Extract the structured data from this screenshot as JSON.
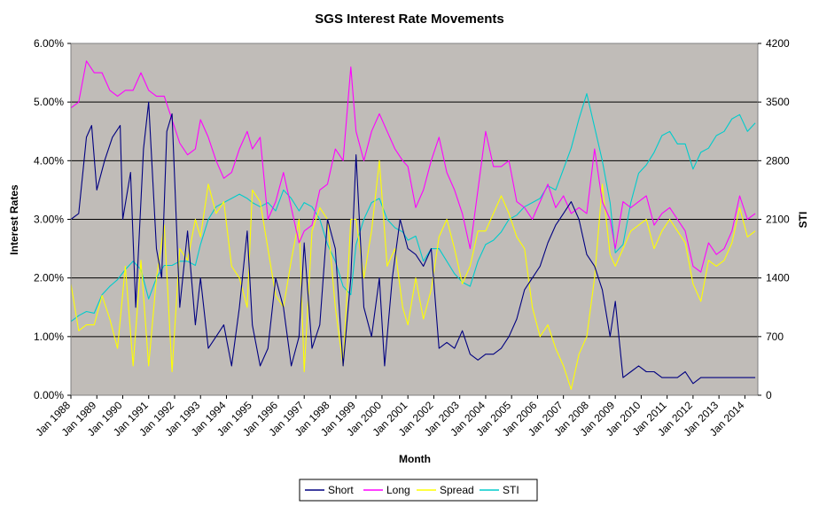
{
  "chart_data": {
    "type": "line",
    "title": "SGS Interest Rate Movements",
    "xlabel": "Month",
    "ylabel": "Interest Rates",
    "y2label": "STI",
    "ylim": [
      0,
      0.06
    ],
    "y2lim": [
      0,
      4200
    ],
    "y_ticks": [
      "0.00%",
      "1.00%",
      "2.00%",
      "3.00%",
      "4.00%",
      "5.00%",
      "6.00%"
    ],
    "y2_ticks": [
      "0",
      "700",
      "1400",
      "2100",
      "2800",
      "3500",
      "4200"
    ],
    "x_ticks": [
      "Jan 1988",
      "Jan 1989",
      "Jan 1990",
      "Jan 1991",
      "Jan 1992",
      "Jan 1993",
      "Jan 1994",
      "Jan 1995",
      "Jan 1996",
      "Jan 1997",
      "Jan 1998",
      "Jan 1999",
      "Jan 2000",
      "Jan 2001",
      "Jan 2002",
      "Jan 2003",
      "Jan 2004",
      "Jan 2005",
      "Jan 2006",
      "Jan 2007",
      "Jan 2008",
      "Jan 2009",
      "Jan 2010",
      "Jan 2011",
      "Jan 2012",
      "Jan 2013",
      "Jan 2014"
    ],
    "xlim": [
      1988.0,
      2014.5
    ],
    "grid": true,
    "legend": "bottom",
    "background": "#c0bcb8",
    "series": [
      {
        "name": "Short",
        "color": "#000080",
        "axis": "left",
        "x": [
          1988.0,
          1988.3,
          1988.6,
          1988.8,
          1989.0,
          1989.3,
          1989.6,
          1989.9,
          1990.0,
          1990.3,
          1990.5,
          1990.8,
          1991.0,
          1991.3,
          1991.5,
          1991.7,
          1991.9,
          1992.2,
          1992.5,
          1992.8,
          1993.0,
          1993.3,
          1993.6,
          1993.9,
          1994.2,
          1994.5,
          1994.8,
          1995.0,
          1995.3,
          1995.6,
          1995.9,
          1996.2,
          1996.5,
          1996.8,
          1997.0,
          1997.3,
          1997.6,
          1997.9,
          1998.2,
          1998.5,
          1998.8,
          1999.0,
          1999.3,
          1999.6,
          1999.9,
          2000.1,
          2000.4,
          2000.7,
          2001.0,
          2001.3,
          2001.6,
          2001.9,
          2002.2,
          2002.5,
          2002.8,
          2003.1,
          2003.4,
          2003.7,
          2004.0,
          2004.3,
          2004.6,
          2004.9,
          2005.2,
          2005.5,
          2005.8,
          2006.1,
          2006.4,
          2006.7,
          2007.0,
          2007.3,
          2007.6,
          2007.9,
          2008.2,
          2008.5,
          2008.8,
          2009.0,
          2009.3,
          2009.6,
          2009.9,
          2010.2,
          2010.5,
          2010.8,
          2011.1,
          2011.4,
          2011.7,
          2012.0,
          2012.3,
          2012.6,
          2012.9,
          2013.2,
          2013.5,
          2013.8,
          2014.1,
          2014.4
        ],
        "y": [
          0.03,
          0.031,
          0.044,
          0.046,
          0.035,
          0.04,
          0.044,
          0.046,
          0.03,
          0.038,
          0.015,
          0.042,
          0.05,
          0.025,
          0.02,
          0.045,
          0.048,
          0.015,
          0.028,
          0.012,
          0.02,
          0.008,
          0.01,
          0.012,
          0.005,
          0.015,
          0.028,
          0.012,
          0.005,
          0.008,
          0.02,
          0.015,
          0.005,
          0.01,
          0.026,
          0.008,
          0.012,
          0.03,
          0.025,
          0.005,
          0.02,
          0.041,
          0.015,
          0.01,
          0.02,
          0.005,
          0.02,
          0.03,
          0.025,
          0.024,
          0.022,
          0.025,
          0.008,
          0.009,
          0.008,
          0.011,
          0.007,
          0.006,
          0.007,
          0.007,
          0.008,
          0.01,
          0.013,
          0.018,
          0.02,
          0.022,
          0.026,
          0.029,
          0.031,
          0.033,
          0.03,
          0.024,
          0.022,
          0.018,
          0.01,
          0.016,
          0.003,
          0.004,
          0.005,
          0.004,
          0.004,
          0.003,
          0.003,
          0.003,
          0.004,
          0.002,
          0.003,
          0.003,
          0.003,
          0.003,
          0.003,
          0.003,
          0.003,
          0.003
        ]
      },
      {
        "name": "Long",
        "color": "#ff00ff",
        "axis": "left",
        "x": [
          1988.0,
          1988.3,
          1988.6,
          1988.9,
          1989.2,
          1989.5,
          1989.8,
          1990.1,
          1990.4,
          1990.7,
          1991.0,
          1991.3,
          1991.6,
          1991.9,
          1992.2,
          1992.5,
          1992.8,
          1993.0,
          1993.3,
          1993.6,
          1993.9,
          1994.2,
          1994.5,
          1994.8,
          1995.0,
          1995.3,
          1995.6,
          1995.9,
          1996.2,
          1996.5,
          1996.8,
          1997.0,
          1997.3,
          1997.6,
          1997.9,
          1998.2,
          1998.5,
          1998.8,
          1999.0,
          1999.3,
          1999.6,
          1999.9,
          2000.2,
          2000.5,
          2000.8,
          2001.0,
          2001.3,
          2001.6,
          2001.9,
          2002.2,
          2002.5,
          2002.8,
          2003.1,
          2003.4,
          2003.7,
          2004.0,
          2004.3,
          2004.6,
          2004.9,
          2005.2,
          2005.5,
          2005.8,
          2006.1,
          2006.4,
          2006.7,
          2007.0,
          2007.3,
          2007.6,
          2007.9,
          2008.2,
          2008.5,
          2008.8,
          2009.0,
          2009.3,
          2009.6,
          2009.9,
          2010.2,
          2010.5,
          2010.8,
          2011.1,
          2011.4,
          2011.7,
          2012.0,
          2012.3,
          2012.6,
          2012.9,
          2013.2,
          2013.5,
          2013.8,
          2014.1,
          2014.4
        ],
        "y": [
          0.049,
          0.05,
          0.057,
          0.055,
          0.055,
          0.052,
          0.051,
          0.052,
          0.052,
          0.055,
          0.052,
          0.051,
          0.051,
          0.047,
          0.043,
          0.041,
          0.042,
          0.047,
          0.044,
          0.04,
          0.037,
          0.038,
          0.042,
          0.045,
          0.042,
          0.044,
          0.03,
          0.033,
          0.038,
          0.032,
          0.026,
          0.028,
          0.029,
          0.035,
          0.036,
          0.042,
          0.04,
          0.056,
          0.045,
          0.04,
          0.045,
          0.048,
          0.045,
          0.042,
          0.04,
          0.039,
          0.032,
          0.035,
          0.04,
          0.044,
          0.038,
          0.035,
          0.031,
          0.025,
          0.035,
          0.045,
          0.039,
          0.039,
          0.04,
          0.033,
          0.032,
          0.03,
          0.033,
          0.036,
          0.032,
          0.034,
          0.031,
          0.032,
          0.031,
          0.042,
          0.033,
          0.03,
          0.025,
          0.033,
          0.032,
          0.033,
          0.034,
          0.029,
          0.031,
          0.032,
          0.03,
          0.028,
          0.022,
          0.021,
          0.026,
          0.024,
          0.025,
          0.028,
          0.034,
          0.03,
          0.031
        ]
      },
      {
        "name": "Spread",
        "color": "#ffff00",
        "axis": "left",
        "x": [
          1988.0,
          1988.3,
          1988.6,
          1988.9,
          1989.2,
          1989.5,
          1989.8,
          1990.1,
          1990.4,
          1990.7,
          1991.0,
          1991.3,
          1991.6,
          1991.9,
          1992.2,
          1992.5,
          1992.8,
          1993.0,
          1993.3,
          1993.6,
          1993.9,
          1994.2,
          1994.5,
          1994.8,
          1995.0,
          1995.3,
          1995.6,
          1995.9,
          1996.2,
          1996.5,
          1996.8,
          1997.0,
          1997.3,
          1997.6,
          1997.9,
          1998.2,
          1998.5,
          1998.8,
          1999.0,
          1999.3,
          1999.6,
          1999.9,
          2000.2,
          2000.5,
          2000.8,
          2001.0,
          2001.3,
          2001.6,
          2001.9,
          2002.2,
          2002.5,
          2002.8,
          2003.1,
          2003.4,
          2003.7,
          2004.0,
          2004.3,
          2004.6,
          2004.9,
          2005.2,
          2005.5,
          2005.8,
          2006.1,
          2006.4,
          2006.7,
          2007.0,
          2007.3,
          2007.6,
          2007.9,
          2008.2,
          2008.5,
          2008.8,
          2009.0,
          2009.3,
          2009.6,
          2009.9,
          2010.2,
          2010.5,
          2010.8,
          2011.1,
          2011.4,
          2011.7,
          2012.0,
          2012.3,
          2012.6,
          2012.9,
          2013.2,
          2013.5,
          2013.8,
          2014.1,
          2014.4
        ],
        "y": [
          0.019,
          0.011,
          0.012,
          0.012,
          0.017,
          0.013,
          0.008,
          0.022,
          0.005,
          0.023,
          0.005,
          0.02,
          0.029,
          0.004,
          0.025,
          0.023,
          0.03,
          0.027,
          0.036,
          0.031,
          0.033,
          0.022,
          0.02,
          0.015,
          0.035,
          0.033,
          0.025,
          0.017,
          0.015,
          0.023,
          0.03,
          0.004,
          0.028,
          0.032,
          0.03,
          0.015,
          0.005,
          0.03,
          0.03,
          0.02,
          0.028,
          0.04,
          0.022,
          0.025,
          0.015,
          0.012,
          0.02,
          0.013,
          0.018,
          0.027,
          0.03,
          0.025,
          0.019,
          0.022,
          0.028,
          0.028,
          0.031,
          0.034,
          0.031,
          0.027,
          0.025,
          0.015,
          0.01,
          0.012,
          0.008,
          0.005,
          0.001,
          0.007,
          0.01,
          0.02,
          0.036,
          0.024,
          0.022,
          0.025,
          0.028,
          0.029,
          0.03,
          0.025,
          0.028,
          0.03,
          0.028,
          0.026,
          0.019,
          0.016,
          0.023,
          0.022,
          0.023,
          0.026,
          0.032,
          0.027,
          0.028
        ]
      },
      {
        "name": "STI",
        "color": "#00cccc",
        "axis": "right",
        "x": [
          1988.0,
          1988.3,
          1988.6,
          1988.9,
          1989.2,
          1989.5,
          1989.8,
          1990.1,
          1990.4,
          1990.7,
          1991.0,
          1991.3,
          1991.6,
          1991.9,
          1992.2,
          1992.5,
          1992.8,
          1993.0,
          1993.3,
          1993.6,
          1993.9,
          1994.2,
          1994.5,
          1994.8,
          1995.0,
          1995.3,
          1995.6,
          1995.9,
          1996.2,
          1996.5,
          1996.8,
          1997.0,
          1997.3,
          1997.6,
          1997.9,
          1998.2,
          1998.5,
          1998.8,
          1999.0,
          1999.3,
          1999.6,
          1999.9,
          2000.2,
          2000.5,
          2000.8,
          2001.0,
          2001.3,
          2001.6,
          2001.9,
          2002.2,
          2002.5,
          2002.8,
          2003.1,
          2003.4,
          2003.7,
          2004.0,
          2004.3,
          2004.6,
          2004.9,
          2005.2,
          2005.5,
          2005.8,
          2006.1,
          2006.4,
          2006.7,
          2007.0,
          2007.3,
          2007.6,
          2007.9,
          2008.2,
          2008.5,
          2008.8,
          2009.0,
          2009.3,
          2009.6,
          2009.9,
          2010.2,
          2010.5,
          2010.8,
          2011.1,
          2011.4,
          2011.7,
          2012.0,
          2012.3,
          2012.6,
          2012.9,
          2013.2,
          2013.5,
          2013.8,
          2014.1,
          2014.4
        ],
        "y": [
          880,
          950,
          1000,
          980,
          1200,
          1300,
          1380,
          1500,
          1600,
          1500,
          1150,
          1400,
          1550,
          1550,
          1600,
          1600,
          1550,
          1800,
          2100,
          2250,
          2300,
          2350,
          2400,
          2350,
          2300,
          2250,
          2300,
          2200,
          2450,
          2350,
          2200,
          2300,
          2250,
          2100,
          1800,
          1600,
          1300,
          1200,
          1800,
          2100,
          2300,
          2350,
          2100,
          2000,
          1950,
          1850,
          1900,
          1600,
          1750,
          1750,
          1600,
          1450,
          1350,
          1300,
          1600,
          1800,
          1850,
          1950,
          2100,
          2150,
          2250,
          2300,
          2350,
          2500,
          2450,
          2700,
          2950,
          3300,
          3600,
          3200,
          2800,
          2300,
          1700,
          1800,
          2300,
          2650,
          2750,
          2900,
          3100,
          3150,
          3000,
          3000,
          2700,
          2900,
          2950,
          3100,
          3150,
          3300,
          3350,
          3150,
          3250
        ]
      }
    ]
  }
}
